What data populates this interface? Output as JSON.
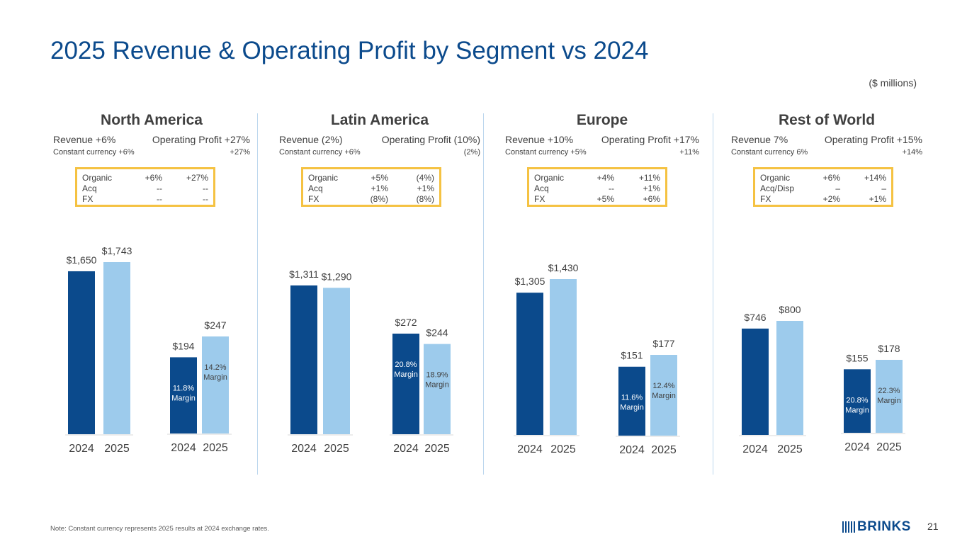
{
  "title": "2025 Revenue & Operating Profit by Segment vs 2024",
  "units": "($ millions)",
  "footnote": "Note: Constant currency represents 2025 results at 2024 exchange rates.",
  "logo": "BRINKS",
  "page_number": "21",
  "colors": {
    "bar_2024": "#0b4a8c",
    "bar_2025": "#9dcbec",
    "bridge_border": "#f5c242",
    "title": "#0b4a8c"
  },
  "segments": [
    {
      "name": "North America",
      "revenue_growth": "Revenue +6%",
      "op_growth": "Operating Profit +27%",
      "cc_revenue": "Constant currency +6%",
      "cc_op": "+27%",
      "bridge": [
        {
          "label": "Organic",
          "rev": "+6%",
          "op": "+27%"
        },
        {
          "label": "Acq",
          "rev": "--",
          "op": "--"
        },
        {
          "label": "FX",
          "rev": "--",
          "op": "--"
        }
      ]
    },
    {
      "name": "Latin America",
      "revenue_growth": "Revenue (2%)",
      "op_growth": "Operating Profit (10%)",
      "cc_revenue": "Constant currency +6%",
      "cc_op": "(2%)",
      "bridge": [
        {
          "label": "Organic",
          "rev": "+5%",
          "op": "(4%)"
        },
        {
          "label": "Acq",
          "rev": "+1%",
          "op": "+1%"
        },
        {
          "label": "FX",
          "rev": "(8%)",
          "op": "(8%)"
        }
      ]
    },
    {
      "name": "Europe",
      "revenue_growth": "Revenue +10%",
      "op_growth": "Operating Profit +17%",
      "cc_revenue": "Constant currency +5%",
      "cc_op": "+11%",
      "bridge": [
        {
          "label": "Organic",
          "rev": "+4%",
          "op": "+11%"
        },
        {
          "label": "Acq",
          "rev": "--",
          "op": "+1%"
        },
        {
          "label": "FX",
          "rev": "+5%",
          "op": "+6%"
        }
      ]
    },
    {
      "name": "Rest of World",
      "revenue_growth": "Revenue 7%",
      "op_growth": "Operating Profit +15%",
      "cc_revenue": "Constant currency 6%",
      "cc_op": "+14%",
      "bridge": [
        {
          "label": "Organic",
          "rev": "+6%",
          "op": "+14%"
        },
        {
          "label": "Acq/Disp",
          "rev": "–",
          "op": "–"
        },
        {
          "label": "FX",
          "rev": "+2%",
          "op": "+1%"
        }
      ]
    }
  ],
  "chart_data": [
    {
      "type": "bar",
      "segment": "North America",
      "metric": "Revenue",
      "categories": [
        "2024",
        "2025"
      ],
      "values": [
        1650,
        1743
      ],
      "labels": [
        "$1,650",
        "$1,743"
      ]
    },
    {
      "type": "bar",
      "segment": "North America",
      "metric": "Operating Profit",
      "categories": [
        "2024",
        "2025"
      ],
      "values": [
        194,
        247
      ],
      "labels": [
        "$194",
        "$247"
      ],
      "margins": [
        "11.8%",
        "14.2%"
      ],
      "margin_word": "Margin"
    },
    {
      "type": "bar",
      "segment": "Latin America",
      "metric": "Revenue",
      "categories": [
        "2024",
        "2025"
      ],
      "values": [
        1311,
        1290
      ],
      "labels": [
        "$1,311",
        "$1,290"
      ]
    },
    {
      "type": "bar",
      "segment": "Latin America",
      "metric": "Operating Profit",
      "categories": [
        "2024",
        "2025"
      ],
      "values": [
        272,
        244
      ],
      "labels": [
        "$272",
        "$244"
      ],
      "margins": [
        "20.8%",
        "18.9%"
      ],
      "margin_word": "Margin"
    },
    {
      "type": "bar",
      "segment": "Europe",
      "metric": "Revenue",
      "categories": [
        "2024",
        "2025"
      ],
      "values": [
        1305,
        1430
      ],
      "labels": [
        "$1,305",
        "$1,430"
      ]
    },
    {
      "type": "bar",
      "segment": "Europe",
      "metric": "Operating Profit",
      "categories": [
        "2024",
        "2025"
      ],
      "values": [
        151,
        177
      ],
      "labels": [
        "$151",
        "$177"
      ],
      "margins": [
        "11.6%",
        "12.4%"
      ],
      "margin_word": "Margin"
    },
    {
      "type": "bar",
      "segment": "Rest of World",
      "metric": "Revenue",
      "categories": [
        "2024",
        "2025"
      ],
      "values": [
        746,
        800
      ],
      "labels": [
        "$746",
        "$800"
      ]
    },
    {
      "type": "bar",
      "segment": "Rest of World",
      "metric": "Operating Profit",
      "categories": [
        "2024",
        "2025"
      ],
      "values": [
        155,
        178
      ],
      "labels": [
        "$155",
        "$178"
      ],
      "margins": [
        "20.8%",
        "22.3%"
      ],
      "margin_word": "Margin"
    }
  ]
}
